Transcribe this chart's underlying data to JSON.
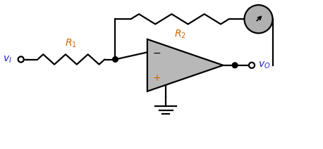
{
  "fig_width": 4.58,
  "fig_height": 2.12,
  "dpi": 100,
  "bg_color": "#ffffff",
  "line_color": "#000000",
  "line_width": 1.6,
  "opamp_fill": "#b8b8b8",
  "ammeter_fill": "#b0b0b0",
  "label_color_vi_vo": "#2222cc",
  "label_color_r": "#cc6600",
  "vI_label": "$v_I$",
  "vO_label": "$v_O$",
  "R1_label": "$R_1$",
  "R2_label": "$R_2$",
  "minus_label": "$-$",
  "plus_label": "$+$",
  "xlim": [
    0,
    9.5
  ],
  "ylim": [
    0,
    4.2
  ]
}
